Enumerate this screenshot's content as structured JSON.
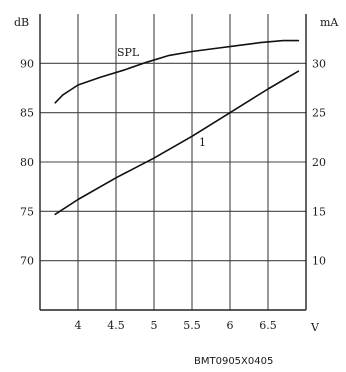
{
  "chart_data": {
    "type": "line",
    "x_ticks": [
      4,
      4.5,
      5,
      5.5,
      6,
      6.5
    ],
    "x_tick_labels": [
      "4",
      "4.5",
      "5",
      "5.5",
      "6",
      "6.5"
    ],
    "xlabel": "V",
    "xlim": [
      3.5,
      7.0
    ],
    "y_left": {
      "unit": "dB",
      "ticks": [
        70,
        75,
        80,
        85,
        90
      ],
      "tick_labels": [
        "70",
        "75",
        "80",
        "85",
        "90"
      ],
      "lim": [
        65,
        95
      ]
    },
    "y_right": {
      "unit": "mA",
      "ticks": [
        10,
        15,
        20,
        25,
        30
      ],
      "tick_labels": [
        "10",
        "15",
        "20",
        "25",
        "30"
      ],
      "lim": [
        5,
        35
      ]
    },
    "grid": true,
    "series": [
      {
        "name": "SPL",
        "axis": "left",
        "x": [
          3.7,
          3.8,
          3.9,
          4.0,
          4.3,
          4.6,
          4.9,
          5.2,
          5.5,
          5.8,
          6.1,
          6.4,
          6.7,
          6.9
        ],
        "y": [
          86.0,
          86.8,
          87.3,
          87.8,
          88.6,
          89.3,
          90.1,
          90.8,
          91.2,
          91.5,
          91.8,
          92.1,
          92.3,
          92.3
        ]
      },
      {
        "name": "1",
        "axis": "right",
        "x": [
          3.7,
          4.0,
          4.5,
          5.0,
          5.5,
          6.0,
          6.5,
          6.9
        ],
        "y": [
          14.7,
          16.2,
          18.4,
          20.4,
          22.6,
          25.0,
          27.4,
          29.2
        ]
      }
    ],
    "annotations": [
      "SPL",
      "1"
    ],
    "footer": "BMT0905X0405"
  }
}
